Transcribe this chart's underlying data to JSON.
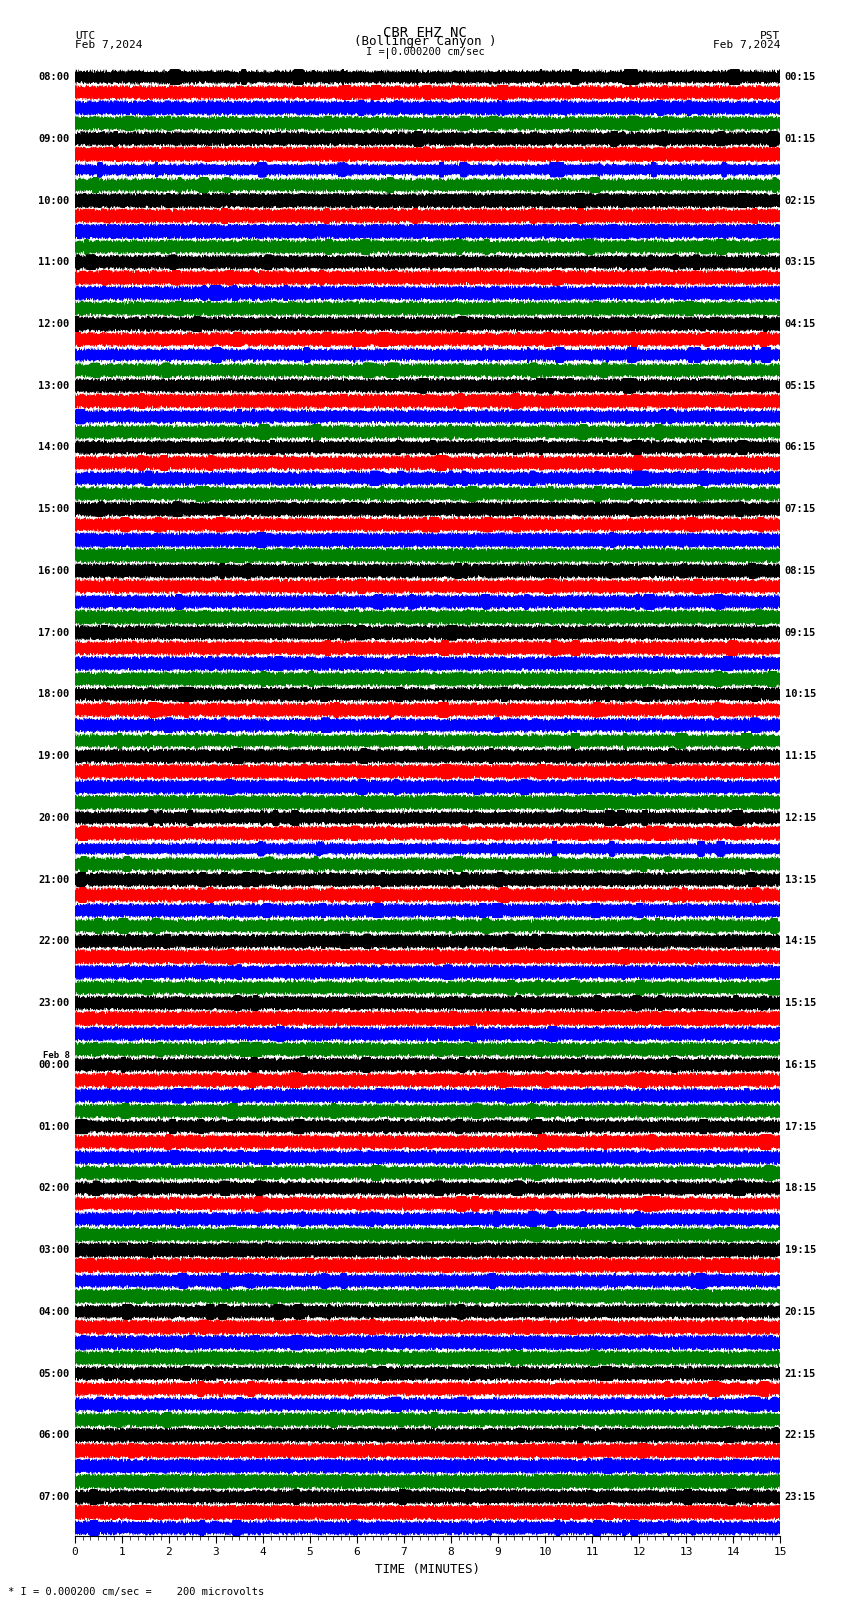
{
  "title_line1": "CBR EHZ NC",
  "title_line2": "(Bollinger Canyon )",
  "scale_label": "I = 0.000200 cm/sec",
  "left_header": "UTC",
  "left_date": "Feb 7,2024",
  "right_header": "PST",
  "right_date": "Feb 7,2024",
  "bottom_label": "TIME (MINUTES)",
  "bottom_note": "* I = 0.000200 cm/sec =    200 microvolts",
  "xlabel_ticks": [
    0,
    1,
    2,
    3,
    4,
    5,
    6,
    7,
    8,
    9,
    10,
    11,
    12,
    13,
    14,
    15
  ],
  "trace_duration_minutes": 15,
  "sample_rate": 100,
  "background_color": "#ffffff",
  "grid_color": "#888888",
  "trace_colors_cycle": [
    "#000000",
    "#ff0000",
    "#0000ff",
    "#008000"
  ],
  "utc_times": [
    "08:00",
    "",
    "",
    "",
    "09:00",
    "",
    "",
    "",
    "10:00",
    "",
    "",
    "",
    "11:00",
    "",
    "",
    "",
    "12:00",
    "",
    "",
    "",
    "13:00",
    "",
    "",
    "",
    "14:00",
    "",
    "",
    "",
    "15:00",
    "",
    "",
    "",
    "16:00",
    "",
    "",
    "",
    "17:00",
    "",
    "",
    "",
    "18:00",
    "",
    "",
    "",
    "19:00",
    "",
    "",
    "",
    "20:00",
    "",
    "",
    "",
    "21:00",
    "",
    "",
    "",
    "22:00",
    "",
    "",
    "",
    "23:00",
    "",
    "",
    "",
    "Feb 8\n00:00",
    "",
    "",
    "",
    "01:00",
    "",
    "",
    "",
    "02:00",
    "",
    "",
    "",
    "03:00",
    "",
    "",
    "",
    "04:00",
    "",
    "",
    "",
    "05:00",
    "",
    "",
    "",
    "06:00",
    "",
    "",
    "",
    "07:00",
    "",
    ""
  ],
  "pst_times": [
    "00:15",
    "",
    "",
    "",
    "01:15",
    "",
    "",
    "",
    "02:15",
    "",
    "",
    "",
    "03:15",
    "",
    "",
    "",
    "04:15",
    "",
    "",
    "",
    "05:15",
    "",
    "",
    "",
    "06:15",
    "",
    "",
    "",
    "07:15",
    "",
    "",
    "",
    "08:15",
    "",
    "",
    "",
    "09:15",
    "",
    "",
    "",
    "10:15",
    "",
    "",
    "",
    "11:15",
    "",
    "",
    "",
    "12:15",
    "",
    "",
    "",
    "13:15",
    "",
    "",
    "",
    "14:15",
    "",
    "",
    "",
    "15:15",
    "",
    "",
    "",
    "16:15",
    "",
    "",
    "",
    "17:15",
    "",
    "",
    "",
    "18:15",
    "",
    "",
    "",
    "19:15",
    "",
    "",
    "",
    "20:15",
    "",
    "",
    "",
    "21:15",
    "",
    "",
    "",
    "22:15",
    "",
    "",
    "",
    "23:15",
    "",
    ""
  ],
  "num_traces": 95,
  "figsize": [
    8.5,
    16.13
  ],
  "dpi": 100
}
